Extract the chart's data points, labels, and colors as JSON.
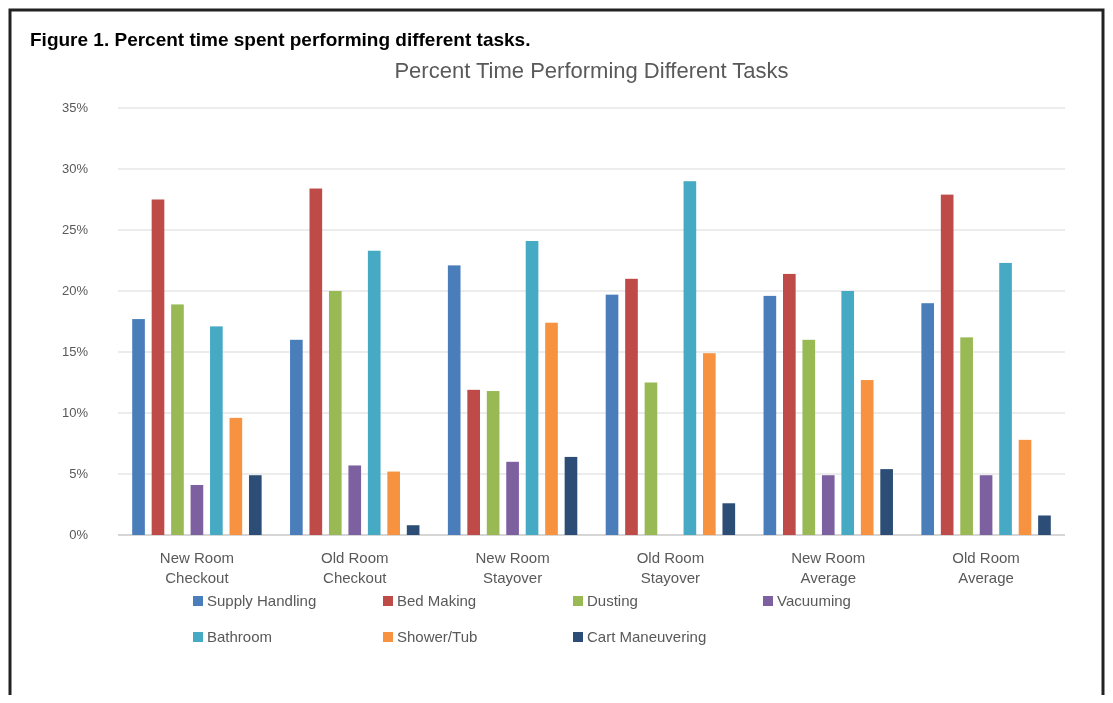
{
  "chart_data": {
    "type": "bar",
    "title": "Figure 1.  Percent time spent performing different tasks.",
    "subtitle": "Percent Time Performing Different Tasks",
    "categories": [
      "New Room Checkout",
      "Old Room Checkout",
      "New Room Stayover",
      "Old Room Stayover",
      "New Room Average",
      "Old Room Average"
    ],
    "series": [
      {
        "name": "Supply Handling",
        "color": "#4a7ebb",
        "values": [
          17.7,
          16.0,
          22.1,
          19.7,
          19.6,
          19.0
        ]
      },
      {
        "name": "Bed Making",
        "color": "#be4b48",
        "values": [
          27.5,
          28.4,
          11.9,
          21.0,
          21.4,
          27.9
        ]
      },
      {
        "name": "Dusting",
        "color": "#98b954",
        "values": [
          18.9,
          20.0,
          11.8,
          12.5,
          16.0,
          16.2
        ]
      },
      {
        "name": "Vacuuming",
        "color": "#7d60a0",
        "values": [
          4.1,
          5.7,
          6.0,
          null,
          4.9,
          4.9
        ]
      },
      {
        "name": "Bathroom",
        "color": "#46aac5",
        "values": [
          17.1,
          23.3,
          24.1,
          29.0,
          20.0,
          22.3
        ]
      },
      {
        "name": "Shower/Tub",
        "color": "#f69240",
        "values": [
          9.6,
          5.2,
          17.4,
          14.9,
          12.7,
          7.8
        ]
      },
      {
        "name": "Cart Maneuvering",
        "color": "#2c4d75",
        "values": [
          4.9,
          0.8,
          6.4,
          2.6,
          5.4,
          1.6
        ]
      }
    ],
    "ylim": [
      0,
      35
    ],
    "yticks": [
      {
        "value": 0,
        "label": "0%"
      },
      {
        "value": 5,
        "label": "5%"
      },
      {
        "value": 10,
        "label": "10%"
      },
      {
        "value": 15,
        "label": "15%"
      },
      {
        "value": 20,
        "label": "20%"
      },
      {
        "value": 25,
        "label": "25%"
      },
      {
        "value": 30,
        "label": "30%"
      },
      {
        "value": 35,
        "label": "35%"
      }
    ],
    "grid": "y",
    "legend": "bottom"
  }
}
